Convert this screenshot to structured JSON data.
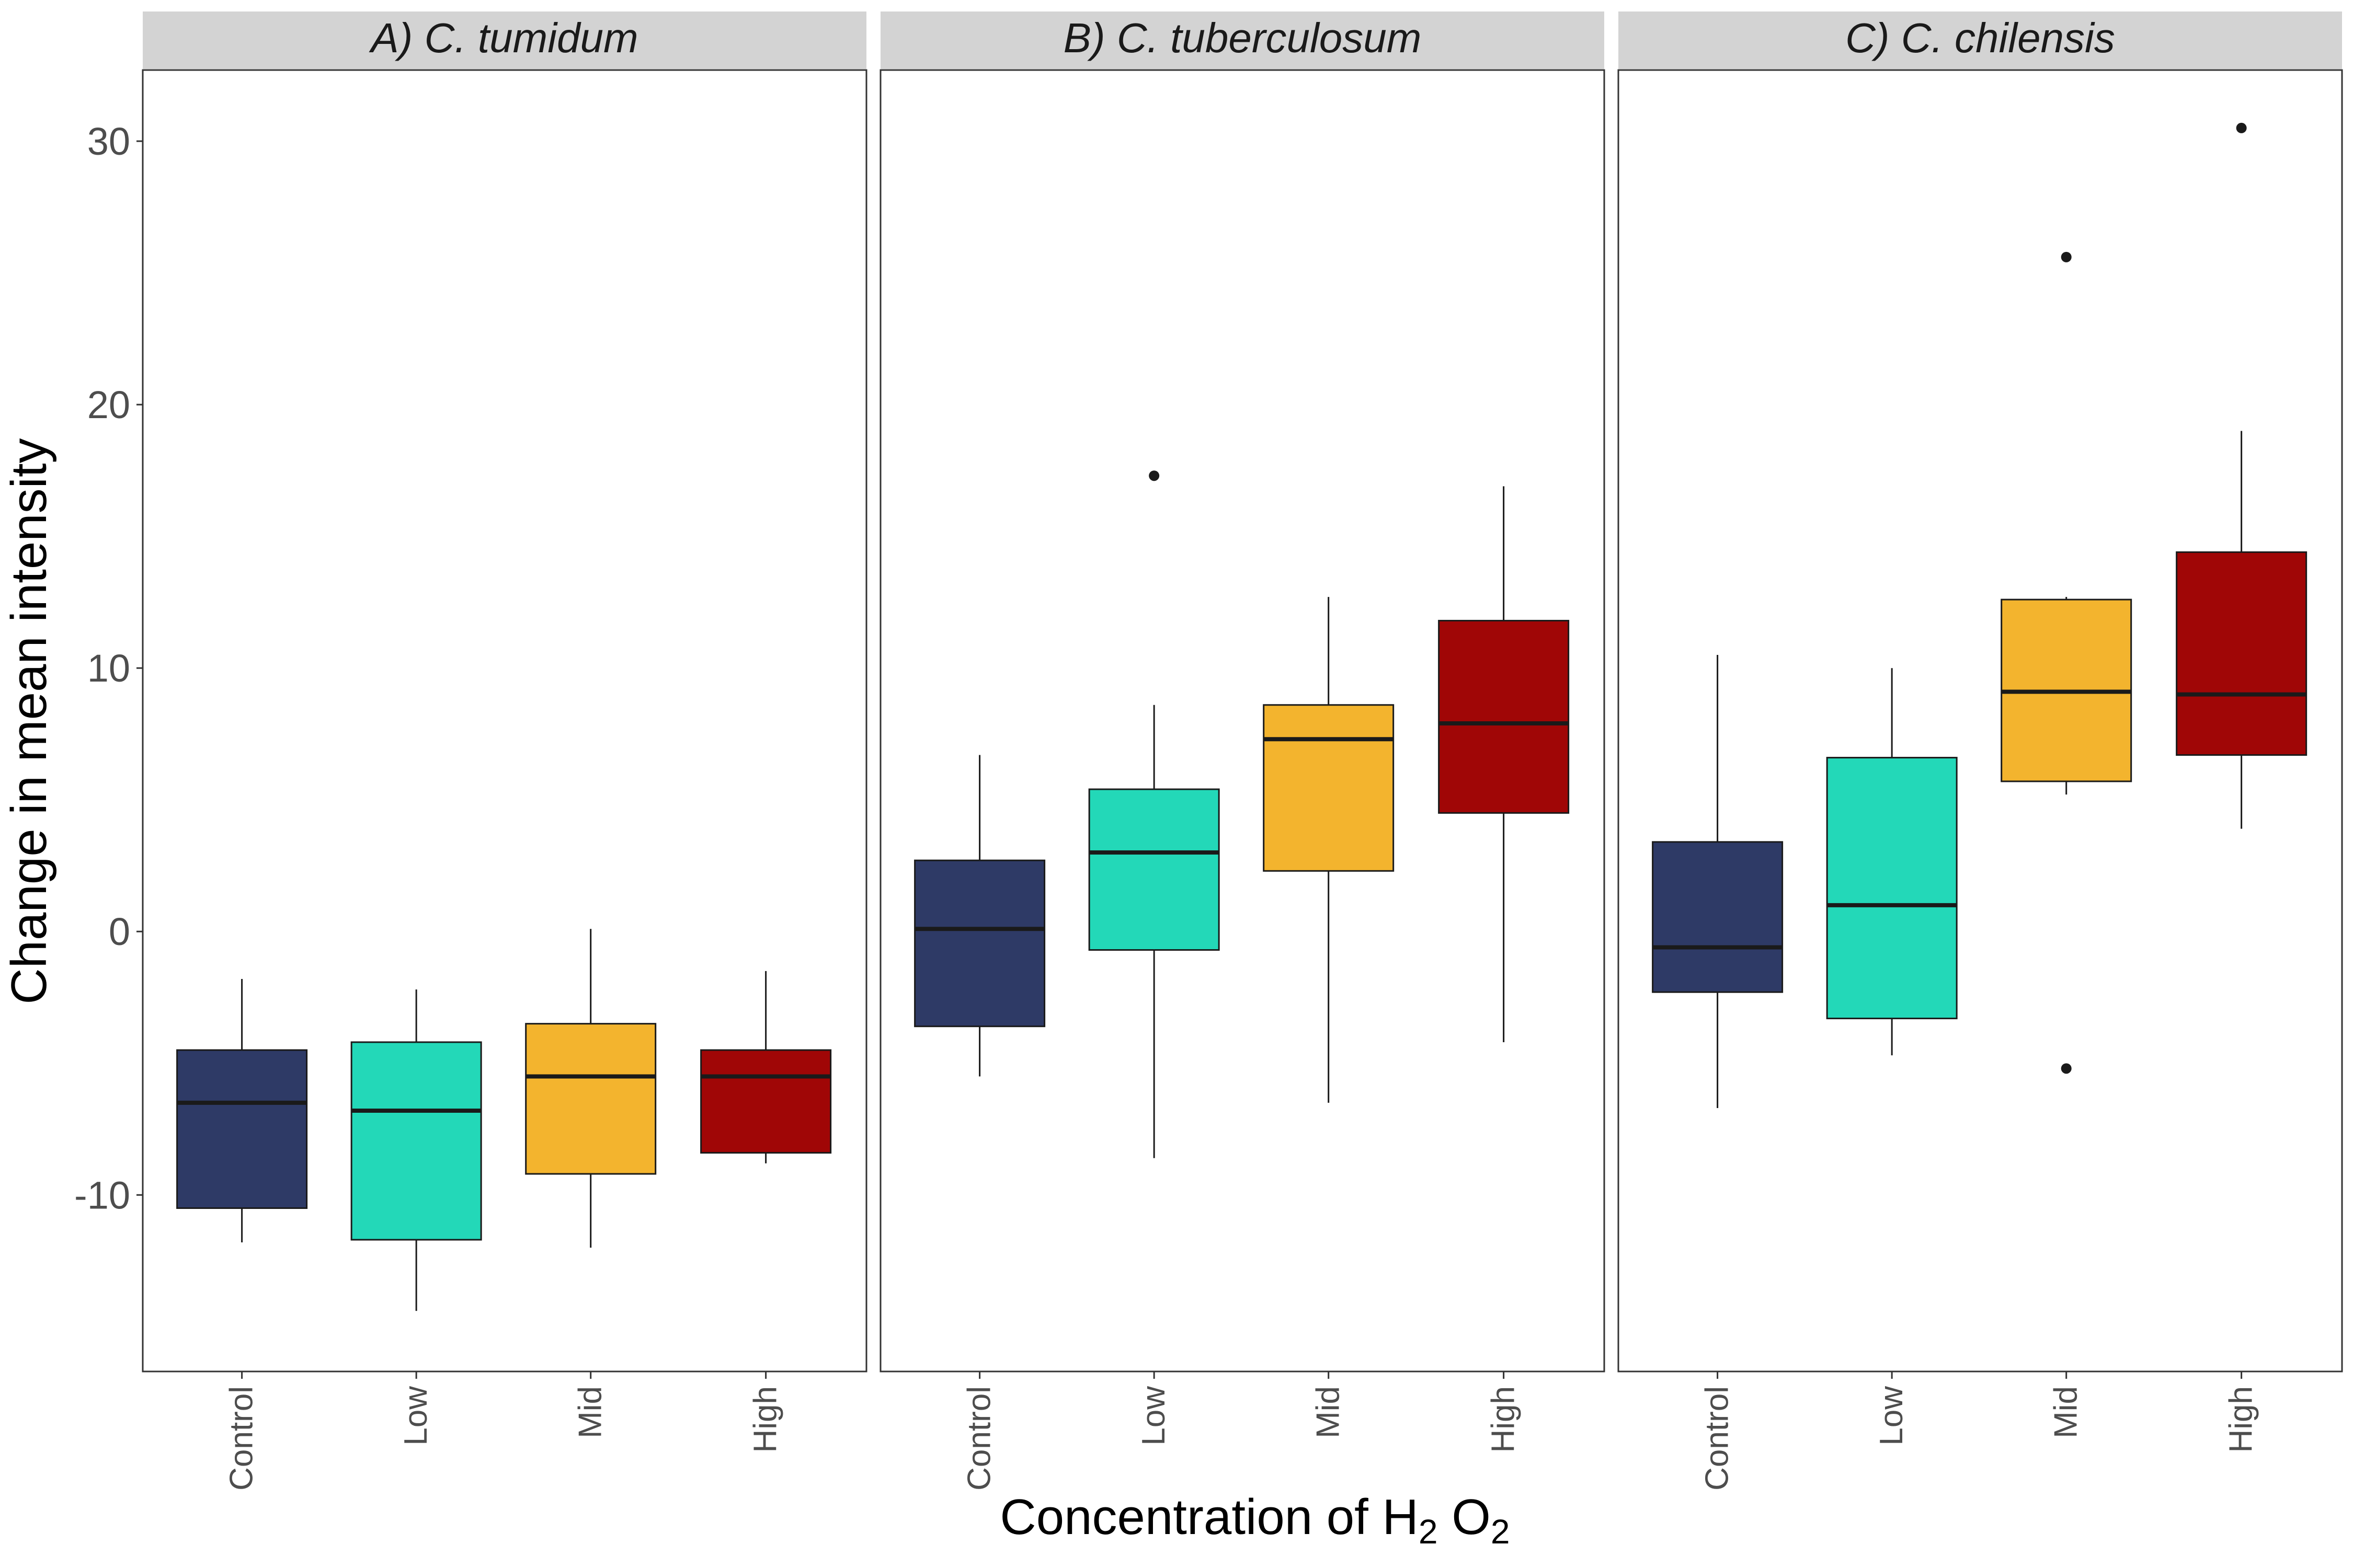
{
  "chart_data": {
    "type": "boxplot",
    "xlabel": "Concentration of",
    "xlabel_formula": {
      "h": "H",
      "h_sub": "2",
      "o": "O",
      "o_sub": "2"
    },
    "ylabel": "Change in mean intensity",
    "ylim": [
      -16.7,
      32.7
    ],
    "yticks": [
      -10,
      0,
      10,
      20,
      30
    ],
    "ytick_labels": [
      "-10",
      "0",
      "10",
      "20",
      "30"
    ],
    "categories": [
      "Control",
      "Low",
      "Mid",
      "High"
    ],
    "colors": {
      "Control": "#2e3a66",
      "Low": "#23d8b8",
      "Mid": "#f3b42e",
      "High": "#a00606"
    },
    "grid": false,
    "panel_header_color": "#d3d3d3",
    "panels": [
      {
        "title": "A) C. tumidum",
        "boxes": [
          {
            "category": "Control",
            "min": -11.8,
            "q1": -10.5,
            "median": -6.5,
            "q3": -4.5,
            "max": -1.8,
            "outliers": []
          },
          {
            "category": "Low",
            "min": -14.4,
            "q1": -11.7,
            "median": -6.8,
            "q3": -4.2,
            "max": -2.2,
            "outliers": []
          },
          {
            "category": "Mid",
            "min": -12.0,
            "q1": -9.2,
            "median": -5.5,
            "q3": -3.5,
            "max": 0.1,
            "outliers": []
          },
          {
            "category": "High",
            "min": -8.8,
            "q1": -8.4,
            "median": -5.5,
            "q3": -4.5,
            "max": -1.5,
            "outliers": []
          }
        ]
      },
      {
        "title": "B) C. tuberculosum",
        "boxes": [
          {
            "category": "Control",
            "min": -5.5,
            "q1": -3.6,
            "median": 0.1,
            "q3": 2.7,
            "max": 6.7,
            "outliers": []
          },
          {
            "category": "Low",
            "min": -8.6,
            "q1": -0.7,
            "median": 3.0,
            "q3": 5.4,
            "max": 8.6,
            "outliers": [
              17.3
            ]
          },
          {
            "category": "Mid",
            "min": -6.5,
            "q1": 2.3,
            "median": 7.3,
            "q3": 8.6,
            "max": 12.7,
            "outliers": []
          },
          {
            "category": "High",
            "min": -4.2,
            "q1": 4.5,
            "median": 7.9,
            "q3": 11.8,
            "max": 16.9,
            "outliers": []
          }
        ]
      },
      {
        "title": "C) C. chilensis",
        "boxes": [
          {
            "category": "Control",
            "min": -6.7,
            "q1": -2.3,
            "median": -0.6,
            "q3": 3.4,
            "max": 10.5,
            "outliers": []
          },
          {
            "category": "Low",
            "min": -4.7,
            "q1": -3.3,
            "median": 1.0,
            "q3": 6.6,
            "max": 10.0,
            "outliers": []
          },
          {
            "category": "Mid",
            "min": 5.2,
            "q1": 5.7,
            "median": 9.1,
            "q3": 12.6,
            "max": 12.7,
            "outliers": [
              25.6,
              -5.2
            ]
          },
          {
            "category": "High",
            "min": 3.9,
            "q1": 6.7,
            "median": 9.0,
            "q3": 14.4,
            "max": 19.0,
            "outliers": [
              30.5
            ]
          }
        ]
      }
    ]
  }
}
